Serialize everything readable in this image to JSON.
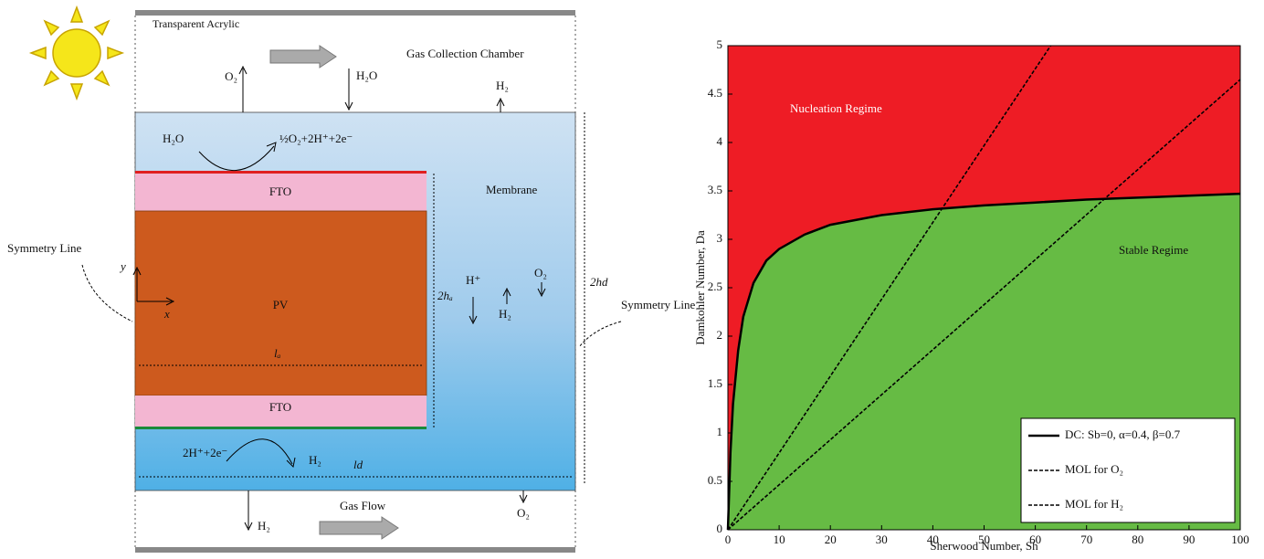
{
  "diagram": {
    "top_label": "Transparent Acrylic",
    "chamber_label": "Gas Collection Chamber",
    "membrane_label": "Membrane",
    "fto_top": "FTO",
    "fto_bottom": "FTO",
    "pv_label": "PV",
    "symmetry_left": "Symmetry Line",
    "symmetry_right": "Symmetry Line",
    "gas_flow": "Gas Flow",
    "o2_out": "O₂",
    "h2o_in": "H₂O",
    "h2_top": "H₂",
    "anode_reactant": "H₂O",
    "anode_reaction": "½O₂+2H⁺+2e⁻",
    "cathode_reactant": "2H⁺+2e⁻",
    "cathode_product": "H₂",
    "h_plus": "H⁺",
    "o2_mid": "O₂",
    "h2_mid": "H₂",
    "height_a": "2hₐ",
    "height_d": "2hd",
    "length_a": "lₐ",
    "length_d": "ld",
    "axis_x": "x",
    "axis_y": "y",
    "h2_bottom": "H₂",
    "o2_bottom": "O₂"
  },
  "chart_data": {
    "type": "line",
    "x_label": "Sherwood Number, Sh",
    "y_label": "Damkohler Number, Da",
    "annotations": [
      "Nucleation Regime",
      "Stable Regime"
    ],
    "xlim": [
      0,
      100
    ],
    "ylim": [
      0,
      5
    ],
    "xticks": [
      0,
      10,
      20,
      30,
      40,
      50,
      60,
      70,
      80,
      90,
      100
    ],
    "yticks": [
      0,
      0.5,
      1,
      1.5,
      2,
      2.5,
      3,
      3.5,
      4,
      4.5,
      5
    ],
    "upper_color": "#ee1c25",
    "lower_color": "#66bb44",
    "legend": "lower right",
    "series": [
      {
        "name": "DC: Sb=0, α=0.4, β=0.7",
        "color": "#000000",
        "dash": "solid",
        "x": [
          0,
          0.5,
          1,
          2,
          3,
          5,
          7.5,
          10,
          15,
          20,
          30,
          40,
          50,
          60,
          70,
          80,
          90,
          100
        ],
        "values": [
          0,
          0.8,
          1.3,
          1.85,
          2.2,
          2.55,
          2.78,
          2.9,
          3.05,
          3.15,
          3.25,
          3.31,
          3.35,
          3.38,
          3.41,
          3.43,
          3.45,
          3.47
        ]
      },
      {
        "name": "MOL for O₂",
        "color": "#000000",
        "dash": "dashed",
        "x": [
          0,
          63
        ],
        "values": [
          0,
          5
        ]
      },
      {
        "name": "MOL for H₂",
        "color": "#000000",
        "dash": "dashed",
        "x": [
          0,
          100
        ],
        "values": [
          0,
          4.65
        ]
      }
    ]
  }
}
